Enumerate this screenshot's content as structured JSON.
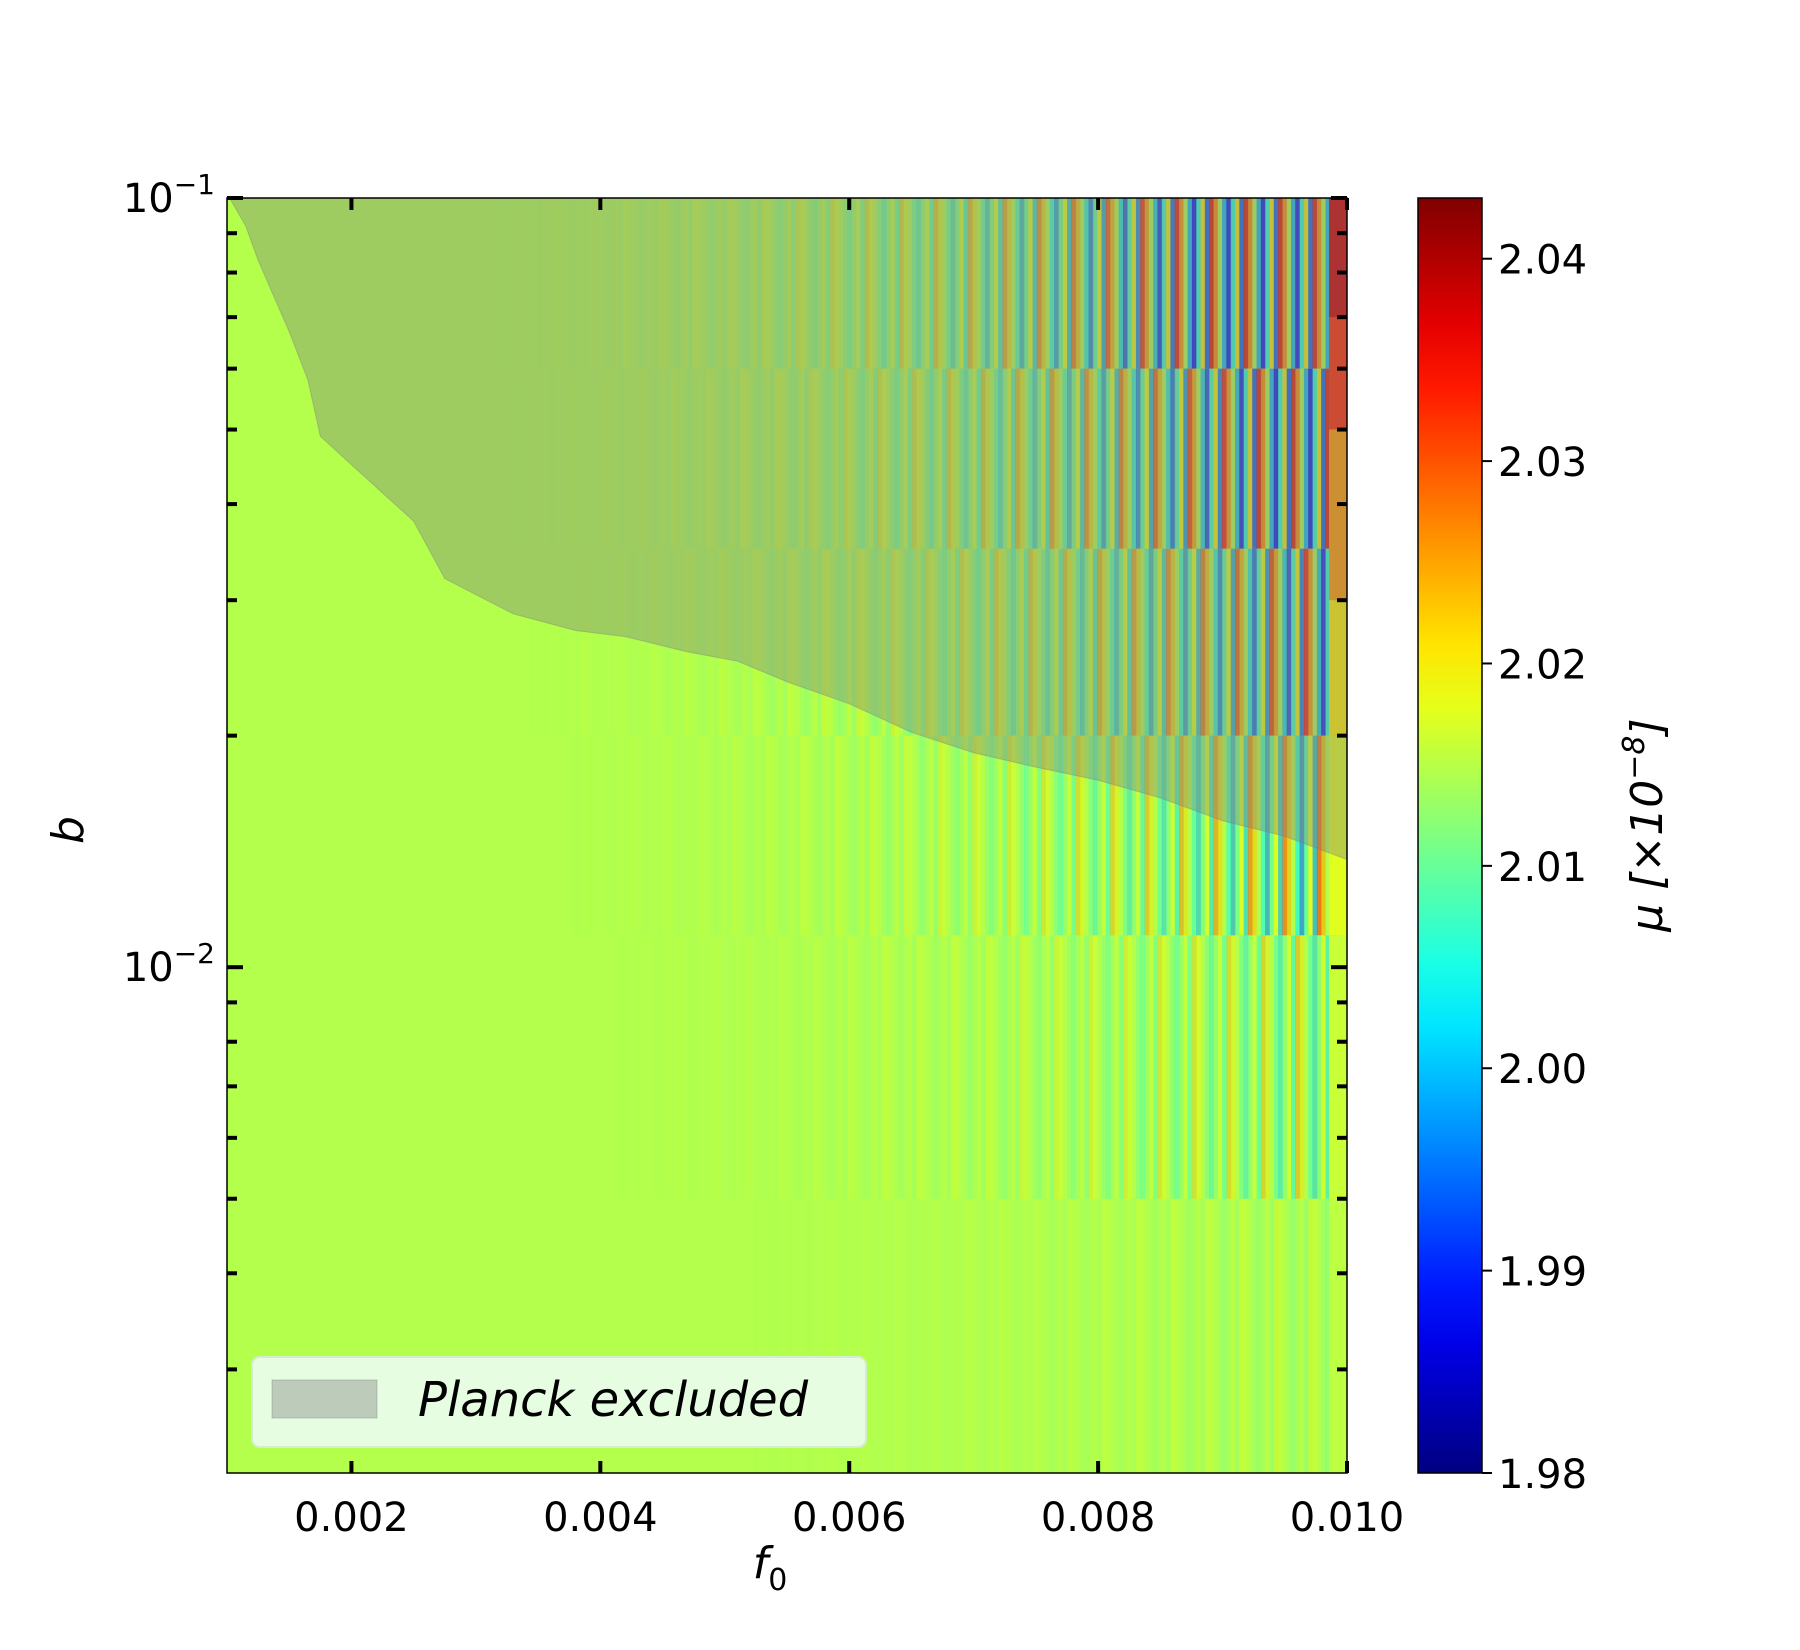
{
  "chart_data": {
    "type": "heatmap",
    "xlabel": "f",
    "xlabel_sub": "0",
    "ylabel": "b",
    "xlim": [
      0.001,
      0.01
    ],
    "ylim": [
      0.0022,
      0.1
    ],
    "y_scale": "log",
    "x_ticks": [
      0.002,
      0.004,
      0.006,
      0.008,
      0.01
    ],
    "x_tick_labels": [
      "0.002",
      "0.004",
      "0.006",
      "0.008",
      "0.010"
    ],
    "y_major_ticks": [
      0.01,
      0.1
    ],
    "y_tick_labels": [
      {
        "base": "10",
        "exp": "−2"
      },
      {
        "base": "10",
        "exp": "−1"
      }
    ],
    "y_minor_ticks": [
      0.003,
      0.004,
      0.005,
      0.006,
      0.007,
      0.008,
      0.009,
      0.02,
      0.03,
      0.04,
      0.05,
      0.06,
      0.07,
      0.08,
      0.09
    ],
    "heatmap_base_value": 2.0147,
    "heatmap_right_edge": [
      {
        "b": 0.1,
        "mu": 2.0405
      },
      {
        "b": 0.07,
        "mu": 2.036
      },
      {
        "b": 0.05,
        "mu": 2.029
      },
      {
        "b": 0.03,
        "mu": 2.022
      },
      {
        "b": 0.02,
        "mu": 2.0185
      },
      {
        "b": 0.011,
        "mu": 2.0165
      },
      {
        "b": 0.005,
        "mu": 2.0155
      },
      {
        "b": 0.0022,
        "mu": 2.015
      }
    ],
    "excluded_region": {
      "label": "Planck excluded",
      "boundary": [
        {
          "f0": 0.00102,
          "b": 0.1
        },
        {
          "f0": 0.00115,
          "b": 0.092
        },
        {
          "f0": 0.00125,
          "b": 0.083
        },
        {
          "f0": 0.0015,
          "b": 0.067
        },
        {
          "f0": 0.00165,
          "b": 0.058
        },
        {
          "f0": 0.00175,
          "b": 0.049
        },
        {
          "f0": 0.002,
          "b": 0.045
        },
        {
          "f0": 0.0025,
          "b": 0.038
        },
        {
          "f0": 0.00275,
          "b": 0.032
        },
        {
          "f0": 0.003,
          "b": 0.0305
        },
        {
          "f0": 0.0033,
          "b": 0.0288
        },
        {
          "f0": 0.0038,
          "b": 0.0274
        },
        {
          "f0": 0.0042,
          "b": 0.0269
        },
        {
          "f0": 0.0047,
          "b": 0.0257
        },
        {
          "f0": 0.0051,
          "b": 0.025
        },
        {
          "f0": 0.0055,
          "b": 0.0235
        },
        {
          "f0": 0.006,
          "b": 0.022
        },
        {
          "f0": 0.0065,
          "b": 0.0202
        },
        {
          "f0": 0.007,
          "b": 0.019
        },
        {
          "f0": 0.0075,
          "b": 0.0182
        },
        {
          "f0": 0.008,
          "b": 0.0175
        },
        {
          "f0": 0.0085,
          "b": 0.0166
        },
        {
          "f0": 0.009,
          "b": 0.0155
        },
        {
          "f0": 0.0095,
          "b": 0.0148
        },
        {
          "f0": 0.01,
          "b": 0.0138
        }
      ]
    },
    "legend": {
      "placement": "lower-left",
      "entries": [
        "Planck excluded"
      ]
    },
    "colorbar": {
      "label": "μ [×10",
      "label_exp": "−8",
      "label_end": "]",
      "range": [
        1.98,
        2.043
      ],
      "ticks": [
        1.98,
        1.99,
        2.0,
        2.01,
        2.02,
        2.03,
        2.04
      ],
      "tick_labels": [
        "1.98",
        "1.99",
        "2.00",
        "2.01",
        "2.02",
        "2.03",
        "2.04"
      ],
      "colormap": "jet"
    },
    "colors": {
      "excluded_fill": "#7f7f7f",
      "legend_box": "#eafdea"
    }
  }
}
